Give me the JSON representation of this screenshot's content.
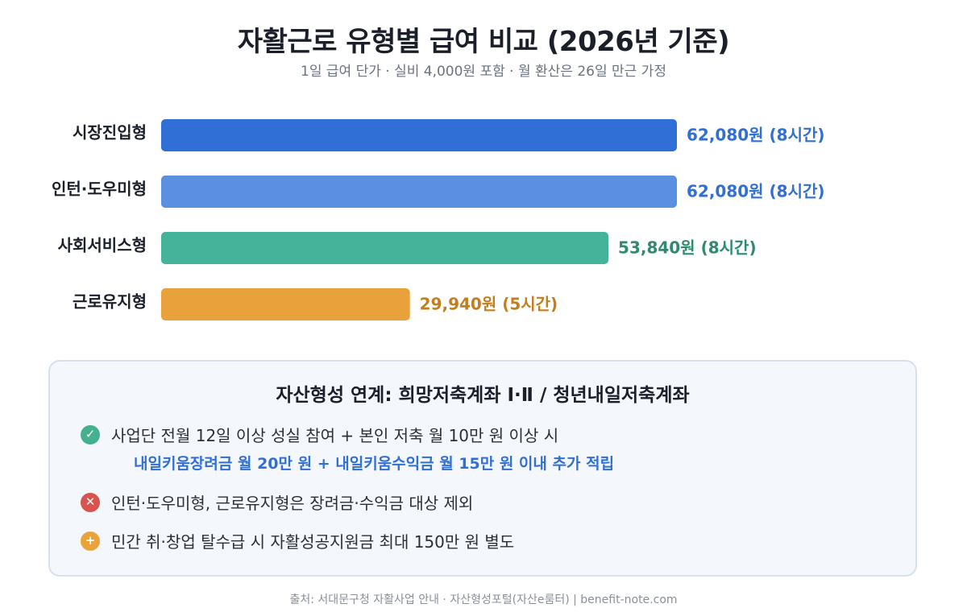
{
  "title": "자활근로 유형별 급여 비교 (2026년 기준)",
  "subtitle": "1일 급여 단가 · 실비 4,000원 포함 · 월 환산은 26일 만근 가정",
  "chart_data": {
    "type": "bar",
    "orientation": "horizontal",
    "categories": [
      "시장진입형",
      "인턴·도우미형",
      "사회서비스형",
      "근로유지형"
    ],
    "values": [
      62080,
      62080,
      53840,
      29940
    ],
    "value_labels": [
      "62,080원 (8시간)",
      "62,080원 (8시간)",
      "53,840원 (8시간)",
      "29,940원 (5시간)"
    ],
    "colors": [
      "#2f6fd6",
      "#5b90e0",
      "#45b39a",
      "#e9a23b"
    ],
    "label_colors": [
      "#2f6fd6",
      "#2f6fd6",
      "#2f8a72",
      "#c27f1f"
    ],
    "xlim": [
      0,
      62080
    ],
    "grid": false,
    "legend": "none"
  },
  "info": {
    "title": "자산형성 연계: 희망저축계좌 Ⅰ·Ⅱ / 청년내일저축계좌",
    "items": [
      {
        "icon": "check-circle-icon",
        "text": "사업단 전월 12일 이상 성실 참여 + 본인 저축 월 10만 원 이상 시"
      },
      {
        "icon": "x-circle-icon",
        "text": "인턴·도우미형, 근로유지형은 장려금·수익금 대상 제외"
      },
      {
        "icon": "plus-circle-icon",
        "text": "민간 취·창업 탈수급 시 자활성공지원금 최대 150만 원 별도"
      }
    ],
    "highlight": "내일키움장려금 월 20만 원 + 내일키움수익금 월 15만 원 이내 추가 적립"
  },
  "footer": "출처: 서대문구청 자활사업 안내 · 자산형성포털(자산e룸터) | benefit-note.com"
}
